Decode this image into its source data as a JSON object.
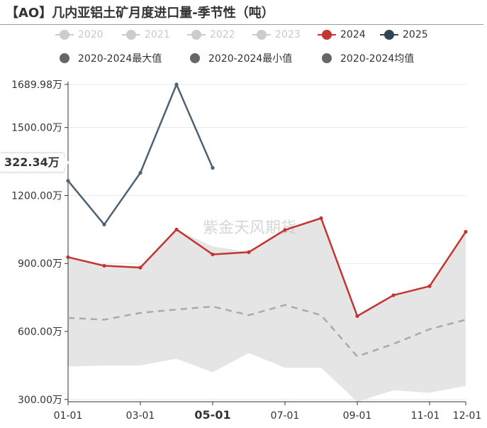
{
  "title": "【AO】几内亚铝土矿月度进口量-季节性（吨）",
  "watermark": "紫金天风期货",
  "axis_pointer_label": "322.34万",
  "legend": [
    {
      "label": "2020",
      "active": false,
      "color": "#cccccc",
      "style": "line-dot"
    },
    {
      "label": "2021",
      "active": false,
      "color": "#cccccc",
      "style": "line-dot"
    },
    {
      "label": "2022",
      "active": false,
      "color": "#cccccc",
      "style": "line-dot"
    },
    {
      "label": "2023",
      "active": false,
      "color": "#cccccc",
      "style": "line-dot"
    },
    {
      "label": "2024",
      "active": true,
      "color": "#c23531",
      "style": "line-dot"
    },
    {
      "label": "2025",
      "active": true,
      "color": "#2f4554",
      "style": "line-dot"
    },
    {
      "label": "2020-2024最大值",
      "active": true,
      "color": "#666666",
      "style": "dot"
    },
    {
      "label": "2020-2024最小值",
      "active": true,
      "color": "#666666",
      "style": "dot"
    },
    {
      "label": "2020-2024均值",
      "active": true,
      "color": "#666666",
      "style": "dot"
    }
  ],
  "chart_data": {
    "type": "line",
    "x_tick_labels": [
      "01-01",
      "03-01",
      "05-01",
      "07-01",
      "09-01",
      "11-01",
      "12-01"
    ],
    "x_highlight": "05-01",
    "y_ticks": [
      300.0,
      600.0,
      900.0,
      1200.0,
      1500.0,
      1689.98
    ],
    "y_tick_suffix": "万",
    "y_tick_labels": [
      "300.00万",
      "600.00万",
      "900.00万",
      "1200.00万",
      "1500.00万",
      "1689.98万"
    ],
    "ylim": [
      290,
      1689.98
    ],
    "months": [
      1,
      2,
      3,
      4,
      5,
      6,
      7,
      8,
      9,
      10,
      11,
      12
    ],
    "band": {
      "max": [
        928,
        890,
        882,
        1050,
        975,
        950,
        1045,
        1100,
        670,
        760,
        800,
        1040
      ],
      "min": [
        445,
        450,
        450,
        480,
        420,
        505,
        440,
        440,
        290,
        340,
        330,
        360
      ]
    },
    "series": [
      {
        "name": "2024",
        "color": "#c23531",
        "values": [
          928,
          890,
          882,
          1050,
          940,
          950,
          1048,
          1100,
          668,
          760,
          800,
          1040
        ]
      },
      {
        "name": "2025",
        "color": "#4d6274",
        "values": [
          1265,
          1072,
          1300,
          1690,
          1322
        ]
      },
      {
        "name": "2020-2024均值",
        "color": "#aaaaaa",
        "dashed": true,
        "values": [
          660,
          652,
          682,
          697,
          710,
          672,
          717,
          672,
          490,
          545,
          610,
          652
        ]
      }
    ],
    "grid": true
  }
}
